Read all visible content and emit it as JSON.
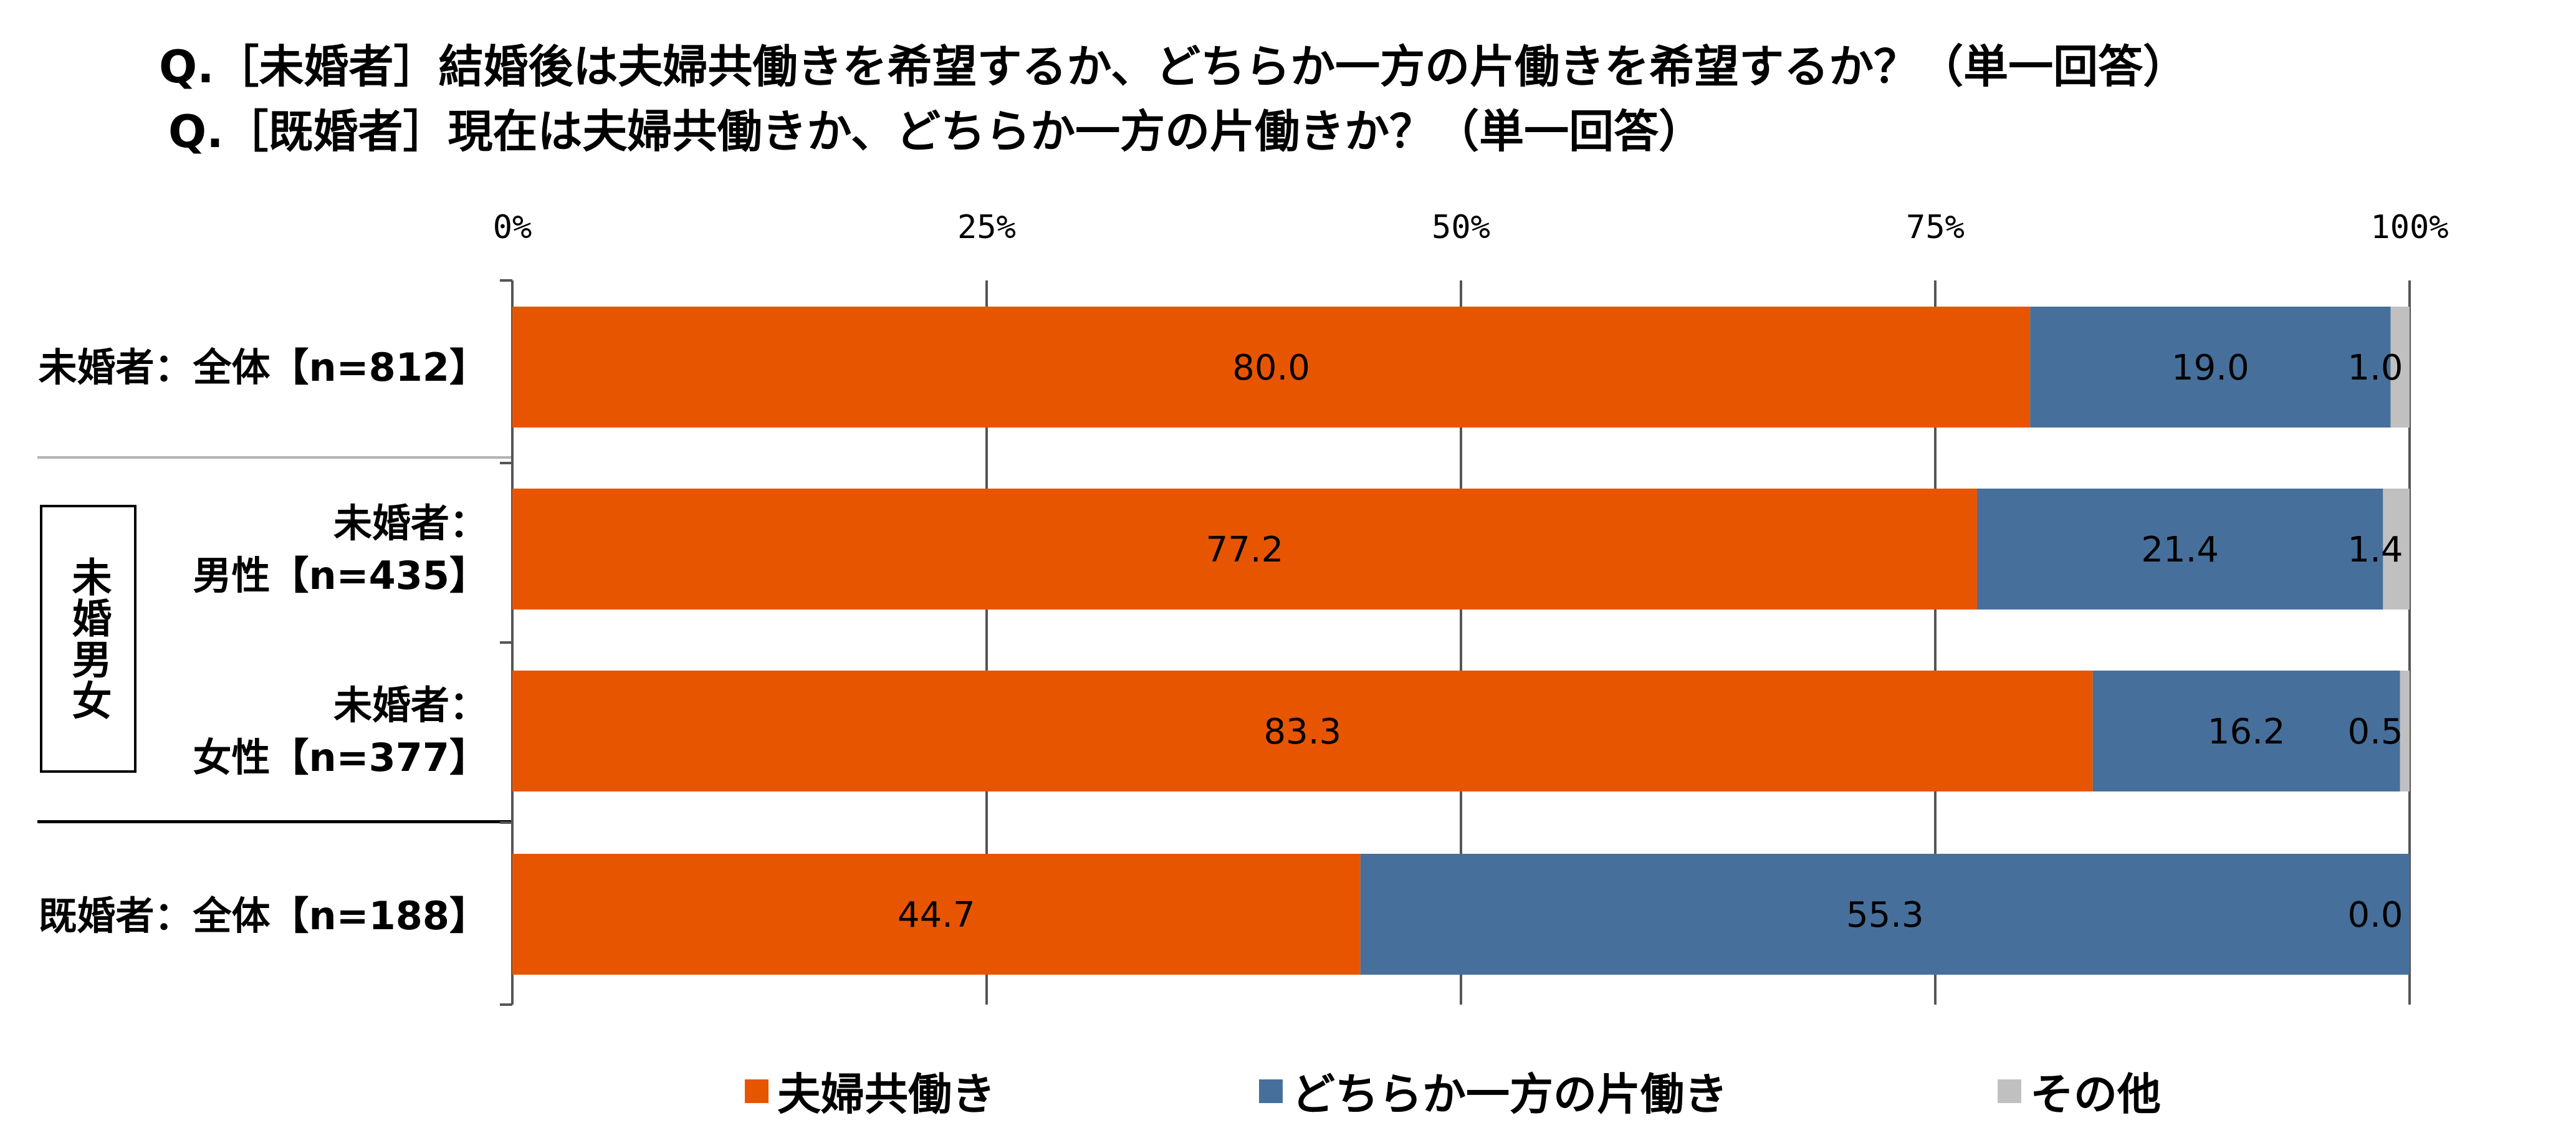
{
  "questions": [
    "Q.［未婚者］結婚後は夫婦共働きを希望するか、どちらか一方の片働きを希望するか？（単一回答）",
    "Q.［既婚者］現在は夫婦共働きか、どちらか一方の片働きか？（単一回答）"
  ],
  "group_label": "未婚男女",
  "colors": {
    "both": "#e85500",
    "single": "#46709b",
    "other": "#c0c0c0",
    "grid": "#555555"
  },
  "chart_data": {
    "type": "bar",
    "orientation": "horizontal",
    "stacked": true,
    "percent": true,
    "title": "",
    "xlabel": "",
    "ylabel": "",
    "xlim": [
      0,
      100
    ],
    "x_ticks": [
      "0%",
      "25%",
      "50%",
      "75%",
      "100%"
    ],
    "grid": true,
    "legend_position": "bottom",
    "categories": [
      {
        "line1": "未婚者：全体【n=812】",
        "line2": ""
      },
      {
        "line1": "未婚者：",
        "line2": "男性【n=435】"
      },
      {
        "line1": "未婚者：",
        "line2": "女性【n=377】"
      },
      {
        "line1": "既婚者：全体【n=188】",
        "line2": ""
      }
    ],
    "series": [
      {
        "name": "夫婦共働き",
        "values": [
          80.0,
          77.2,
          83.3,
          44.7
        ],
        "labels": [
          "80.0",
          "77.2",
          "83.3",
          "44.7"
        ]
      },
      {
        "name": "どちらか一方の片働き",
        "values": [
          19.0,
          21.4,
          16.2,
          55.3
        ],
        "labels": [
          "19.0",
          "21.4",
          "16.2",
          "55.3"
        ]
      },
      {
        "name": "その他",
        "values": [
          1.0,
          1.4,
          0.5,
          0.0
        ],
        "labels": [
          "1.0",
          "1.4",
          "0.5",
          "0.0"
        ]
      }
    ]
  }
}
